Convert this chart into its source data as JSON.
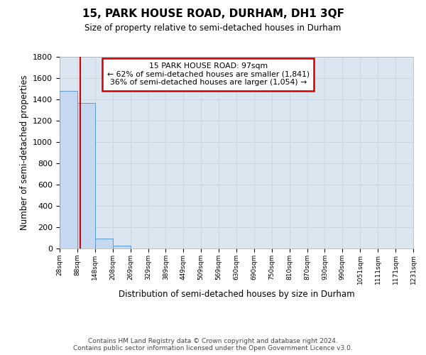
{
  "title": "15, PARK HOUSE ROAD, DURHAM, DH1 3QF",
  "subtitle": "Size of property relative to semi-detached houses in Durham",
  "xlabel": "Distribution of semi-detached houses by size in Durham",
  "ylabel": "Number of semi-detached properties",
  "property_size": 97,
  "annotation_text": "15 PARK HOUSE ROAD: 97sqm\n← 62% of semi-detached houses are smaller (1,841)\n36% of semi-detached houses are larger (1,054) →",
  "bin_edges": [
    28,
    88,
    148,
    208,
    269,
    329,
    389,
    449,
    509,
    569,
    630,
    690,
    750,
    810,
    870,
    930,
    990,
    1051,
    1111,
    1171,
    1231
  ],
  "bin_counts": [
    1480,
    1370,
    95,
    28,
    0,
    0,
    0,
    0,
    0,
    0,
    0,
    0,
    0,
    0,
    0,
    0,
    0,
    0,
    0,
    0
  ],
  "bar_color": "#c5d8ef",
  "bar_edge_color": "#5b9bd5",
  "line_color": "#cc0000",
  "annotation_box_color": "#cc0000",
  "grid_color": "#c8d4e3",
  "background_color": "#dce6f1",
  "ylim": [
    0,
    1800
  ],
  "yticks": [
    0,
    200,
    400,
    600,
    800,
    1000,
    1200,
    1400,
    1600,
    1800
  ],
  "footer_text": "Contains HM Land Registry data © Crown copyright and database right 2024.\nContains public sector information licensed under the Open Government Licence v3.0.",
  "tick_labels": [
    "28sqm",
    "88sqm",
    "148sqm",
    "208sqm",
    "269sqm",
    "329sqm",
    "389sqm",
    "449sqm",
    "509sqm",
    "569sqm",
    "630sqm",
    "690sqm",
    "750sqm",
    "810sqm",
    "870sqm",
    "930sqm",
    "990sqm",
    "1051sqm",
    "1111sqm",
    "1171sqm",
    "1231sqm"
  ]
}
